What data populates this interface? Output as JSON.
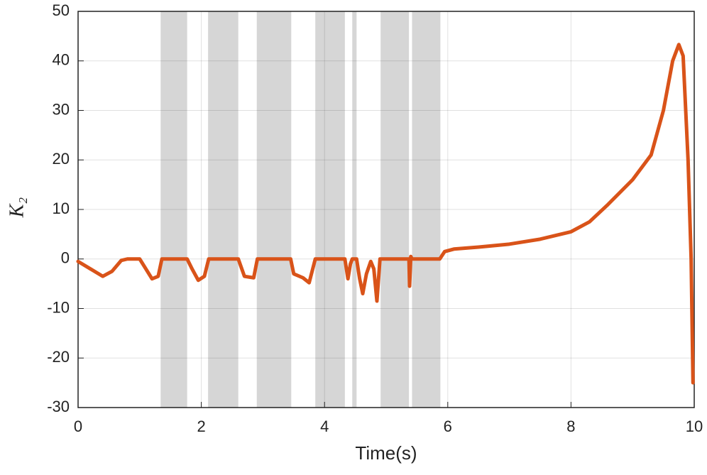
{
  "chart_data": {
    "type": "line",
    "xlabel": "Time(s)",
    "ylabel": "K₂",
    "xlim": [
      0,
      10
    ],
    "ylim": [
      -30,
      50
    ],
    "xticks": [
      0,
      2,
      4,
      6,
      8,
      10
    ],
    "yticks": [
      -30,
      -20,
      -10,
      0,
      10,
      20,
      30,
      40,
      50
    ],
    "grid": true,
    "shaded": [
      [
        1.34,
        1.77
      ],
      [
        2.11,
        2.6
      ],
      [
        2.9,
        3.46
      ],
      [
        3.85,
        4.33
      ],
      [
        4.45,
        4.52
      ],
      [
        4.91,
        5.37
      ],
      [
        5.42,
        5.88
      ]
    ],
    "shade_color": "#d6d6d6",
    "series": [
      {
        "name": "K2",
        "color": "#d95319",
        "x": [
          0,
          0.2,
          0.4,
          0.55,
          0.7,
          0.8,
          1.0,
          1.1,
          1.2,
          1.3,
          1.36,
          1.77,
          1.85,
          1.95,
          2.05,
          2.12,
          2.6,
          2.7,
          2.85,
          2.91,
          3.45,
          3.5,
          3.65,
          3.75,
          3.85,
          4.33,
          4.38,
          4.42,
          4.45,
          4.52,
          4.57,
          4.62,
          4.68,
          4.75,
          4.8,
          4.85,
          4.9,
          5.37,
          5.38,
          5.4,
          5.42,
          5.87,
          5.95,
          6.1,
          6.5,
          7,
          7.5,
          8,
          8.3,
          8.6,
          9,
          9.3,
          9.5,
          9.65,
          9.75,
          9.82,
          9.9,
          9.95,
          9.98
        ],
        "values": [
          -0.5,
          -2,
          -3.5,
          -2.5,
          -0.3,
          0,
          0,
          -2,
          -4,
          -3.5,
          0,
          0,
          -2,
          -4.3,
          -3.5,
          0,
          0,
          -3.5,
          -3.8,
          0,
          0,
          -3,
          -3.8,
          -4.8,
          0,
          0,
          -4,
          -1,
          0,
          0,
          -4,
          -7,
          -3,
          -0.5,
          -2,
          -8.5,
          0,
          0,
          -5.5,
          0.5,
          0,
          0,
          1.5,
          2,
          2.4,
          3,
          4,
          5.5,
          7.5,
          11,
          16,
          21,
          30,
          40,
          43.3,
          41,
          20,
          0,
          -25
        ]
      }
    ]
  }
}
